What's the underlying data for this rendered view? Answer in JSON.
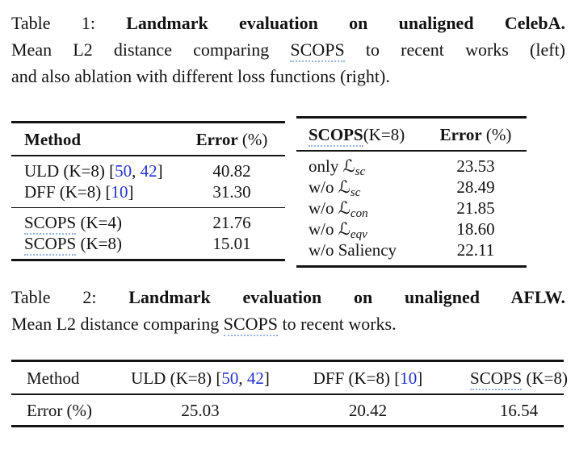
{
  "page": {
    "background": "#ffffff",
    "text_color": "#131313",
    "citation_blue": "#2433cf",
    "link_underline_blue": "#92b4ea"
  },
  "caption1": {
    "line1_label": "Table 1:",
    "line1_bold": "Landmark evaluation on unaligned CelebA.",
    "line2_pre": "Mean L2 distance comparing",
    "line2_link": "SCOPS",
    "line2_post": "to recent works (left)",
    "line3": "and also ablation with different loss functions (right)."
  },
  "table1_left": {
    "header": {
      "method": "Method",
      "error_bold": "Error",
      "error_unit": "(%)"
    },
    "group1": [
      {
        "pre": "ULD (K=8) [",
        "cite1": "50",
        "sep": ", ",
        "cite2": "42",
        "post": "]",
        "error": "40.82"
      },
      {
        "pre": "DFF (K=8) [",
        "cite1": "10",
        "sep": "",
        "cite2": "",
        "post": "]",
        "error": "31.30"
      }
    ],
    "group2": [
      {
        "scops": "SCOPS",
        "rest": " (K=4)",
        "error": "21.76"
      },
      {
        "scops": "SCOPS",
        "rest": " (K=8)",
        "error": "15.01"
      }
    ]
  },
  "table1_right": {
    "header": {
      "scops": "SCOPS",
      "krest": "(K=8)",
      "error_bold": "Error",
      "error_unit": "(%)"
    },
    "rows": [
      {
        "prefix": "only ",
        "symbol": "ℒ",
        "sub": "sc",
        "plain": "",
        "error": "23.53"
      },
      {
        "prefix": "w/o ",
        "symbol": "ℒ",
        "sub": "sc",
        "plain": "",
        "error": "28.49"
      },
      {
        "prefix": "w/o ",
        "symbol": "ℒ",
        "sub": "con",
        "plain": "",
        "error": "21.85"
      },
      {
        "prefix": "w/o ",
        "symbol": "ℒ",
        "sub": "eqv",
        "plain": "",
        "error": "18.60"
      },
      {
        "prefix": "w/o ",
        "symbol": "",
        "sub": "",
        "plain": "Saliency",
        "error": "22.11"
      }
    ]
  },
  "caption2": {
    "line1_label": "Table 2:",
    "line1_bold": "Landmark evaluation on unaligned AFLW.",
    "line2_pre": "Mean L2 distance comparing",
    "line2_link": "SCOPS",
    "line2_post": "to recent works."
  },
  "table2": {
    "header": {
      "method": "Method",
      "uld_pre": "ULD (K=8) [",
      "uld_cite1": "50",
      "uld_sep": ", ",
      "uld_cite2": "42",
      "uld_post": "]",
      "dff_pre": "DFF (K=8) [",
      "dff_cite": "10",
      "dff_post": "]",
      "scops": "SCOPS",
      "scops_rest": " (K=8)"
    },
    "row": {
      "label": "Error (%)",
      "uld": "25.03",
      "dff": "20.42",
      "scops": "16.54"
    }
  }
}
